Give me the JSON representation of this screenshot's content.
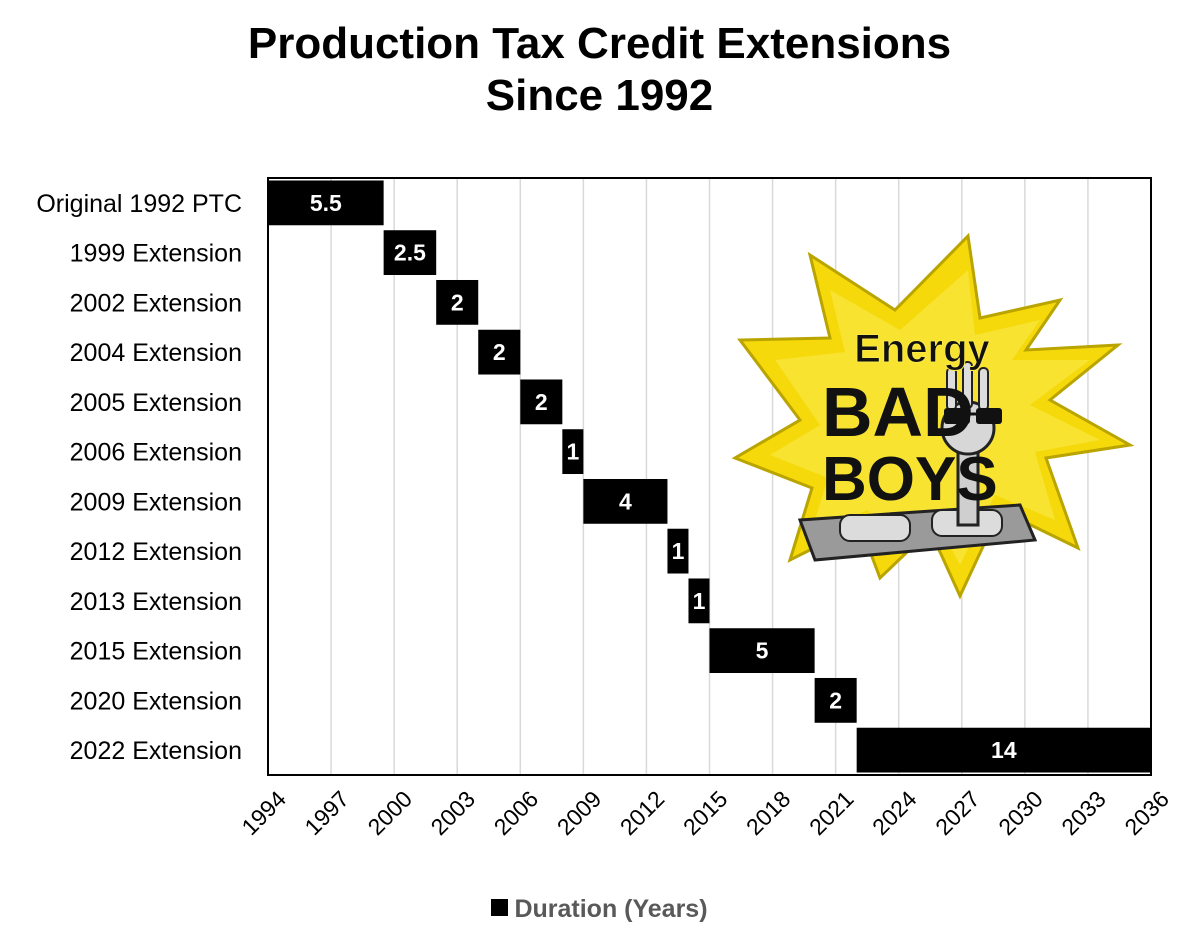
{
  "chart_data": {
    "type": "bar",
    "subtype": "gantt",
    "title_line1": "Production Tax Credit Extensions",
    "title_line2": "Since 1992",
    "categories": [
      "Original 1992 PTC",
      "1999 Extension",
      "2002 Extension",
      "2004 Extension",
      "2005 Extension",
      "2006 Extension",
      "2009 Extension",
      "2012 Extension",
      "2013 Extension",
      "2015 Extension",
      "2020 Extension",
      "2022 Extension"
    ],
    "series": [
      {
        "name": "Duration (Years)",
        "color": "#000000",
        "start": [
          1994,
          1999.5,
          2002,
          2004,
          2006,
          2008,
          2009,
          2013,
          2014,
          2015,
          2020,
          2022
        ],
        "values": [
          5.5,
          2.5,
          2,
          2,
          2,
          1,
          4,
          1,
          1,
          5,
          2,
          14
        ],
        "labels": [
          "5.5",
          "2.5",
          "2",
          "2",
          "2",
          "1",
          "4",
          "1",
          "1",
          "5",
          "2",
          "14"
        ]
      }
    ],
    "xlim": [
      1994,
      2036
    ],
    "xticks": [
      "1994",
      "1997",
      "2000",
      "2003",
      "2006",
      "2009",
      "2012",
      "2015",
      "2018",
      "2021",
      "2024",
      "2027",
      "2030",
      "2033",
      "2036"
    ],
    "xlabel": "",
    "ylabel": "",
    "grid": "vertical",
    "legend_position": "bottom",
    "legend_label": "Duration (Years)"
  },
  "logo": {
    "name": "Energy Bad Boys logo",
    "line1": "Energy",
    "line2": "BAD",
    "line3": "BOYS",
    "burst_color": "#f5d90a",
    "burst_stroke": "#b9a400"
  }
}
